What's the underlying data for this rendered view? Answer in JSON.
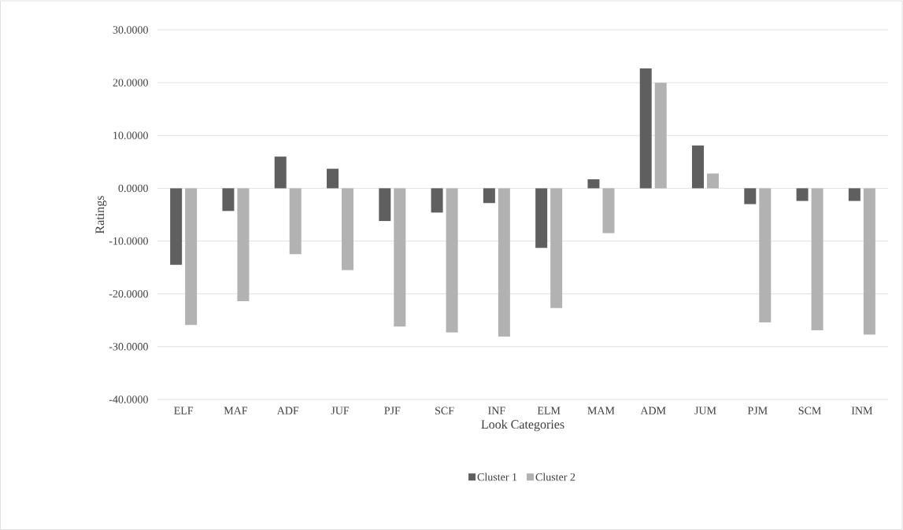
{
  "chart_data": {
    "type": "bar",
    "xlabel": "Look Categories",
    "ylabel": "Ratings",
    "categories": [
      "ELF",
      "MAF",
      "ADF",
      "JUF",
      "PJF",
      "SCF",
      "INF",
      "ELM",
      "MAM",
      "ADM",
      "JUM",
      "PJM",
      "SCM",
      "INM"
    ],
    "series": [
      {
        "name": "Cluster 1",
        "color": "#5f5f5f",
        "values": [
          -14.5,
          -4.3,
          6.0,
          3.7,
          -6.2,
          -4.6,
          -2.8,
          -11.3,
          1.7,
          22.7,
          8.1,
          -3.0,
          -2.4,
          -2.4
        ]
      },
      {
        "name": "Cluster 2",
        "color": "#b2b2b2",
        "values": [
          -25.9,
          -21.4,
          -12.5,
          -15.5,
          -26.2,
          -27.3,
          -28.1,
          -22.7,
          -8.5,
          20.0,
          2.8,
          -25.4,
          -26.9,
          -27.7
        ]
      }
    ],
    "ylim": [
      -40,
      30
    ],
    "yticks": [
      {
        "value": -40,
        "label": "-40.0000"
      },
      {
        "value": -30,
        "label": "-30.0000"
      },
      {
        "value": -20,
        "label": "-20.0000"
      },
      {
        "value": -10,
        "label": "-10.0000"
      },
      {
        "value": 0,
        "label": "0.0000"
      },
      {
        "value": 10,
        "label": "10.0000"
      },
      {
        "value": 20,
        "label": "20.0000"
      },
      {
        "value": 30,
        "label": "30.0000"
      }
    ],
    "grid": "y",
    "legend": "bottom"
  }
}
